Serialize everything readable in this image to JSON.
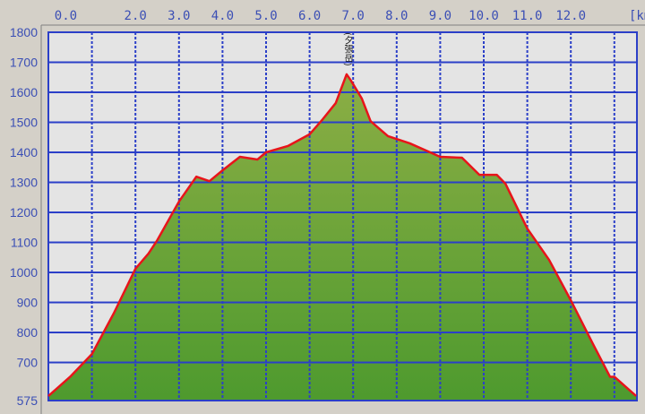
{
  "chart_data": {
    "type": "area",
    "x_unit_label": "[km]",
    "x_tick_labels": [
      "0.0",
      "2.0",
      "3.0",
      "4.0",
      "5.0",
      "6.0",
      "7.0",
      "8.0",
      "9.0",
      "10.0",
      "11.0",
      "12.0"
    ],
    "y_tick_labels": [
      "1800",
      "1700",
      "1600",
      "1500",
      "1400",
      "1300",
      "1200",
      "1100",
      "1000",
      "900",
      "800",
      "700",
      "575"
    ],
    "xlim": [
      0,
      13.5
    ],
    "ylim": [
      575,
      1800
    ],
    "grid": true,
    "annotations": [
      {
        "label": "(夕張岳)",
        "x": 6.85,
        "y": 1660
      }
    ],
    "colors": {
      "line": "#e8141a",
      "fill_top": "#8cae45",
      "fill_bottom": "#4e9a2e",
      "grid": "#2b3fc8",
      "plot_bg": "#e4e4e4"
    },
    "x": [
      0,
      0.5,
      1.0,
      1.5,
      2.0,
      2.3,
      2.5,
      3.0,
      3.4,
      3.7,
      4.0,
      4.4,
      4.8,
      5.0,
      5.5,
      6.0,
      6.3,
      6.6,
      6.85,
      6.95,
      7.2,
      7.4,
      7.8,
      8.3,
      9.0,
      9.5,
      9.9,
      10.3,
      10.5,
      11.0,
      11.5,
      12.0,
      12.5,
      12.9,
      13.0,
      13.5
    ],
    "y": [
      590,
      654,
      728,
      863,
      1012,
      1063,
      1107,
      1236,
      1319,
      1304,
      1340,
      1385,
      1376,
      1400,
      1421,
      1460,
      1510,
      1564,
      1660,
      1639,
      1579,
      1504,
      1454,
      1430,
      1385,
      1382,
      1325,
      1325,
      1295,
      1146,
      1042,
      907,
      764,
      654,
      654,
      590
    ]
  }
}
